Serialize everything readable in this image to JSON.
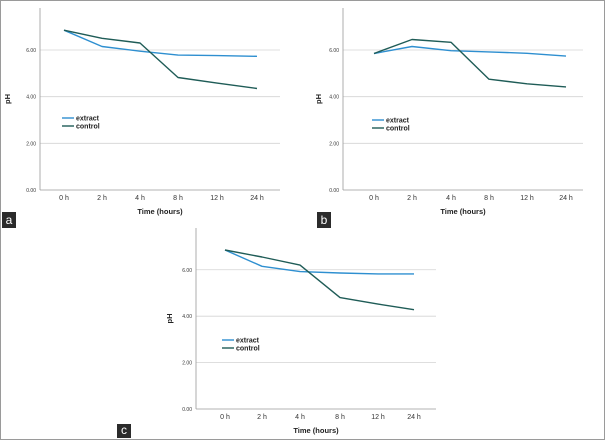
{
  "colors": {
    "extract": "#2e8fd0",
    "control": "#1f5c57",
    "grid": "#d4d4d4",
    "axis": "#9a9a9a",
    "panel_badge": "#2b2b2b"
  },
  "chart_data": [
    {
      "type": "line",
      "panel": "a",
      "categories": [
        "0 h",
        "2 h",
        "4 h",
        "8 h",
        "12 h",
        "24 h"
      ],
      "series": [
        {
          "name": "extract",
          "values": [
            6.85,
            6.15,
            5.95,
            5.78,
            5.76,
            5.73
          ]
        },
        {
          "name": "control",
          "values": [
            6.85,
            6.5,
            6.3,
            4.82,
            4.58,
            4.35
          ]
        }
      ],
      "xlabel": "Time (hours)",
      "ylabel": "pH",
      "ylim": [
        0,
        7.8
      ],
      "yticks": [
        "0.00",
        "2.00",
        "4.00",
        "6.00"
      ],
      "legend": "lower-left",
      "grid": true
    },
    {
      "type": "line",
      "panel": "b",
      "categories": [
        "0 h",
        "2 h",
        "4 h",
        "8 h",
        "12 h",
        "24 h"
      ],
      "series": [
        {
          "name": "extract",
          "values": [
            5.85,
            6.15,
            5.97,
            5.92,
            5.86,
            5.74
          ]
        },
        {
          "name": "control",
          "values": [
            5.85,
            6.45,
            6.33,
            4.75,
            4.55,
            4.42
          ]
        }
      ],
      "xlabel": "Time (hours)",
      "ylabel": "pH",
      "ylim": [
        0,
        7.8
      ],
      "yticks": [
        "0.00",
        "2.00",
        "4.00",
        "6.00"
      ],
      "legend": "lower-left",
      "grid": true
    },
    {
      "type": "line",
      "panel": "c",
      "categories": [
        "0 h",
        "2 h",
        "4 h",
        "8 h",
        "12 h",
        "24 h"
      ],
      "series": [
        {
          "name": "extract",
          "values": [
            6.85,
            6.15,
            5.92,
            5.86,
            5.82,
            5.82
          ]
        },
        {
          "name": "control",
          "values": [
            6.85,
            6.55,
            6.2,
            4.8,
            4.52,
            4.28
          ]
        }
      ],
      "xlabel": "Time (hours)",
      "ylabel": "pH",
      "ylim": [
        0,
        7.8
      ],
      "yticks": [
        "0.00",
        "2.00",
        "4.00",
        "6.00"
      ],
      "legend": "lower-left",
      "grid": true
    }
  ]
}
